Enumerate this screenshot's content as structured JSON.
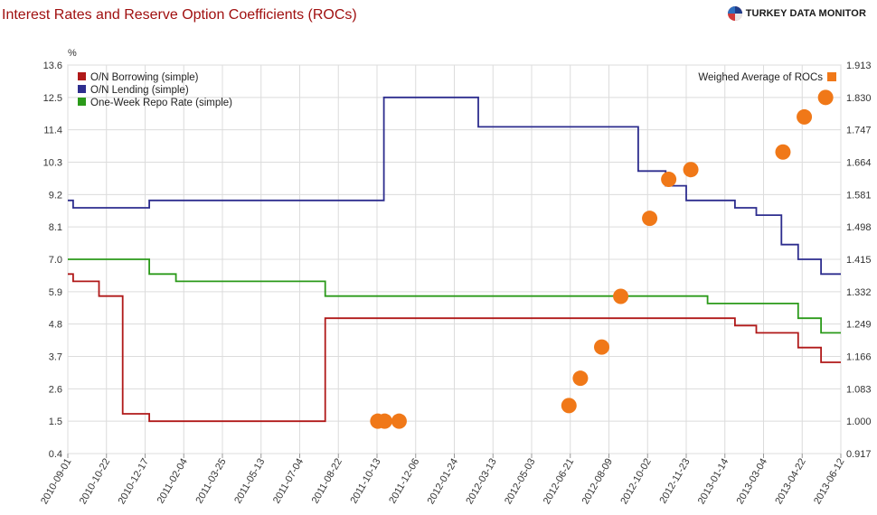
{
  "title": "Interest Rates and Reserve Option Coefficients (ROCs)",
  "brand": {
    "name": "TURKEY DATA MONITOR"
  },
  "chart_data": {
    "type": "line",
    "title": "Interest Rates and Reserve Option Coefficients (ROCs)",
    "x_dates": [
      "2010-09-01",
      "2013-06-12"
    ],
    "x_tick_labels": [
      "2010-09-01",
      "2010-10-22",
      "2010-12-17",
      "2011-02-04",
      "2011-03-25",
      "2011-05-13",
      "2011-07-04",
      "2011-08-22",
      "2011-10-13",
      "2011-12-06",
      "2012-01-24",
      "2012-03-13",
      "2012-05-03",
      "2012-06-21",
      "2012-08-09",
      "2012-10-02",
      "2012-11-23",
      "2013-01-14",
      "2013-03-04",
      "2013-04-22",
      "2013-06-12"
    ],
    "y_left": {
      "label": "%",
      "ticks": [
        "13.6",
        "12.5",
        "11.4",
        "10.3",
        "9.2",
        "8.1",
        "7.0",
        "5.9",
        "4.8",
        "3.7",
        "2.6",
        "1.5",
        "0.4"
      ],
      "min": 0.4,
      "max": 13.6
    },
    "y_right": {
      "ticks": [
        "1.913",
        "1.830",
        "1.747",
        "1.664",
        "1.581",
        "1.498",
        "1.415",
        "1.332",
        "1.249",
        "1.166",
        "1.083",
        "1.000",
        "0.917"
      ],
      "min": 0.917,
      "max": 1.913
    },
    "grid": true,
    "legend_left": "top-left",
    "legend_right": "top-right",
    "series": [
      {
        "name": "O/N Borrowing (simple)",
        "color": "#b01919",
        "step": true,
        "points": [
          [
            "2010-09-01",
            6.5
          ],
          [
            "2010-09-08",
            6.25
          ],
          [
            "2010-10-12",
            5.75
          ],
          [
            "2010-11-12",
            1.75
          ],
          [
            "2010-12-17",
            1.5
          ],
          [
            "2011-08-05",
            5.0
          ],
          [
            "2013-01-24",
            4.75
          ],
          [
            "2013-02-21",
            4.5
          ],
          [
            "2013-04-17",
            4.0
          ],
          [
            "2013-05-17",
            3.5
          ],
          [
            "2013-06-12",
            3.5
          ]
        ]
      },
      {
        "name": "O/N Lending (simple)",
        "color": "#2d2d8e",
        "step": true,
        "points": [
          [
            "2010-09-01",
            9.0
          ],
          [
            "2010-09-08",
            8.75
          ],
          [
            "2010-12-17",
            9.0
          ],
          [
            "2011-10-21",
            12.5
          ],
          [
            "2012-02-22",
            11.5
          ],
          [
            "2012-09-19",
            10.0
          ],
          [
            "2012-10-25",
            9.5
          ],
          [
            "2012-11-21",
            9.0
          ],
          [
            "2013-01-24",
            8.75
          ],
          [
            "2013-02-21",
            8.5
          ],
          [
            "2013-03-26",
            7.5
          ],
          [
            "2013-04-17",
            7.0
          ],
          [
            "2013-05-17",
            6.5
          ],
          [
            "2013-06-12",
            6.5
          ]
        ]
      },
      {
        "name": "One-Week Repo Rate (simple)",
        "color": "#2b9a1a",
        "step": true,
        "points": [
          [
            "2010-09-01",
            7.0
          ],
          [
            "2010-12-17",
            6.5
          ],
          [
            "2011-01-21",
            6.25
          ],
          [
            "2011-08-05",
            5.75
          ],
          [
            "2012-12-19",
            5.5
          ],
          [
            "2013-04-17",
            5.0
          ],
          [
            "2013-05-17",
            4.5
          ],
          [
            "2013-06-12",
            4.5
          ]
        ]
      }
    ],
    "scatter": {
      "name": "Weighed Average of ROCs",
      "color": "#f07818",
      "axis": "right",
      "points": [
        [
          "2011-10-13",
          1.0
        ],
        [
          "2011-10-22",
          1.0
        ],
        [
          "2011-11-10",
          1.0
        ],
        [
          "2012-06-20",
          1.04
        ],
        [
          "2012-07-05",
          1.11
        ],
        [
          "2012-08-02",
          1.19
        ],
        [
          "2012-08-27",
          1.32
        ],
        [
          "2012-10-04",
          1.52
        ],
        [
          "2012-10-29",
          1.62
        ],
        [
          "2012-11-27",
          1.645
        ],
        [
          "2013-03-28",
          1.69
        ],
        [
          "2013-04-25",
          1.78
        ],
        [
          "2013-05-23",
          1.83
        ]
      ]
    }
  }
}
